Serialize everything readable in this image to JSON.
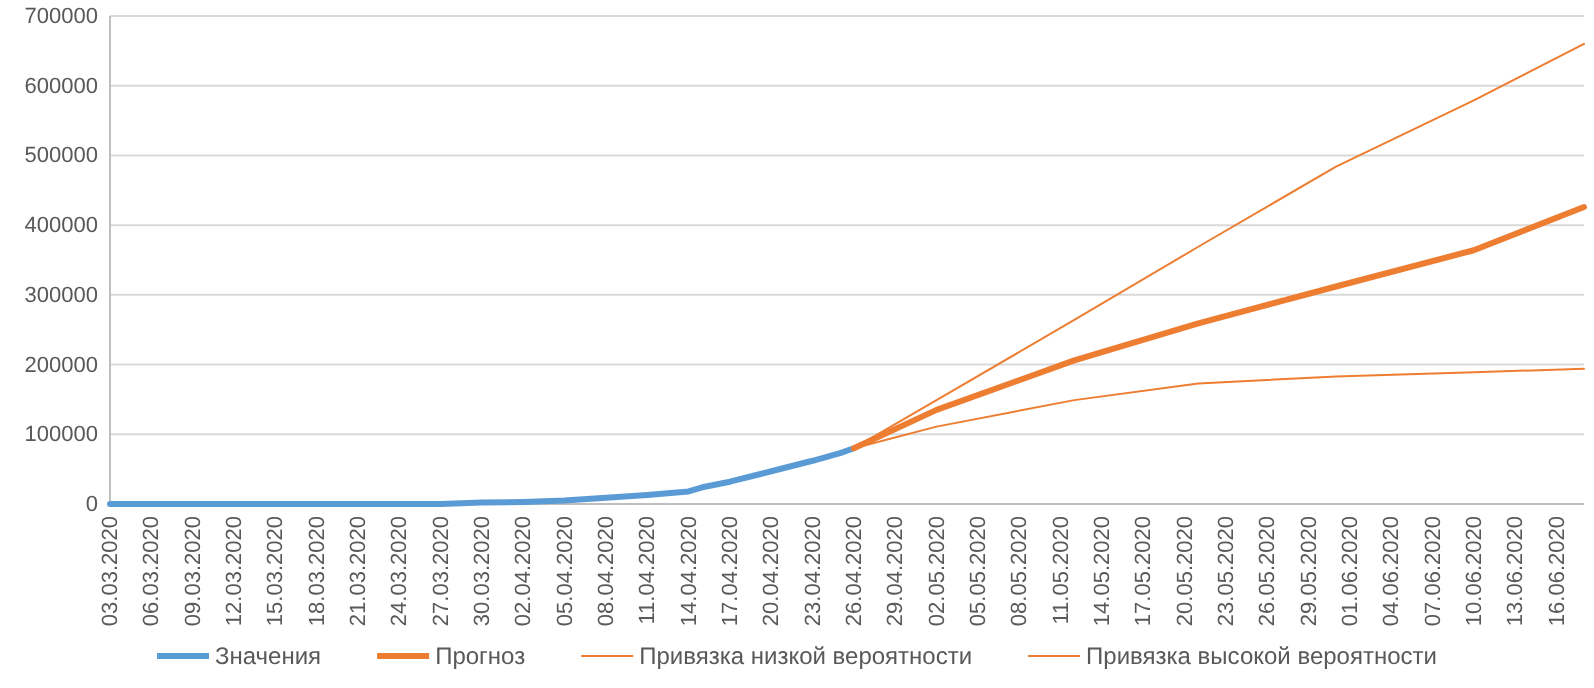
{
  "chart_data": {
    "type": "line",
    "x": [
      "2020-03-03",
      "2020-03-10",
      "2020-03-17",
      "2020-03-24",
      "2020-03-27",
      "2020-03-30",
      "2020-04-02",
      "2020-04-05",
      "2020-04-08",
      "2020-04-11",
      "2020-04-14",
      "2020-04-15",
      "2020-04-17",
      "2020-04-19",
      "2020-04-21",
      "2020-04-23",
      "2020-04-25",
      "2020-04-26"
    ],
    "series": [
      {
        "name": "Значения",
        "color": "#5b9bd5",
        "values": [
          0,
          0,
          0,
          0,
          0,
          2000,
          3000,
          5000,
          9000,
          13000,
          18000,
          24000,
          32000,
          42000,
          52000,
          62000,
          73000,
          80000
        ]
      },
      {
        "name": "Прогноз",
        "color": "#ed7d31",
        "x": [
          "2020-04-26",
          "2020-05-02",
          "2020-05-12",
          "2020-05-21",
          "2020-05-31",
          "2020-06-10",
          "2020-06-18"
        ],
        "values": [
          80000,
          135000,
          206000,
          259000,
          312000,
          364000,
          426000
        ]
      },
      {
        "name": "Привязка низкой вероятности",
        "color": "#ed7d31",
        "x": [
          "2020-04-26",
          "2020-05-02",
          "2020-05-12",
          "2020-05-21",
          "2020-05-31",
          "2020-06-10",
          "2020-06-18"
        ],
        "values": [
          80000,
          111000,
          149000,
          173000,
          183000,
          189000,
          194000
        ]
      },
      {
        "name": "Привязка высокой вероятности",
        "color": "#ed7d31",
        "x": [
          "2020-04-26",
          "2020-05-02",
          "2020-05-12",
          "2020-05-21",
          "2020-05-31",
          "2020-06-10",
          "2020-06-18"
        ],
        "values": [
          80000,
          149000,
          264000,
          369000,
          484000,
          579000,
          660000
        ]
      }
    ],
    "xlim": [
      "2020-03-03",
      "2020-06-18"
    ],
    "xticks": [
      {
        "value": "2020-03-03",
        "label": "03.03.2020"
      },
      {
        "value": "2020-03-06",
        "label": "06.03.2020"
      },
      {
        "value": "2020-03-09",
        "label": "09.03.2020"
      },
      {
        "value": "2020-03-12",
        "label": "12.03.2020"
      },
      {
        "value": "2020-03-15",
        "label": "15.03.2020"
      },
      {
        "value": "2020-03-18",
        "label": "18.03.2020"
      },
      {
        "value": "2020-03-21",
        "label": "21.03.2020"
      },
      {
        "value": "2020-03-24",
        "label": "24.03.2020"
      },
      {
        "value": "2020-03-27",
        "label": "27.03.2020"
      },
      {
        "value": "2020-03-30",
        "label": "30.03.2020"
      },
      {
        "value": "2020-04-02",
        "label": "02.04.2020"
      },
      {
        "value": "2020-04-05",
        "label": "05.04.2020"
      },
      {
        "value": "2020-04-08",
        "label": "08.04.2020"
      },
      {
        "value": "2020-04-11",
        "label": "11.04.2020"
      },
      {
        "value": "2020-04-14",
        "label": "14.04.2020"
      },
      {
        "value": "2020-04-17",
        "label": "17.04.2020"
      },
      {
        "value": "2020-04-20",
        "label": "20.04.2020"
      },
      {
        "value": "2020-04-23",
        "label": "23.04.2020"
      },
      {
        "value": "2020-04-26",
        "label": "26.04.2020"
      },
      {
        "value": "2020-04-29",
        "label": "29.04.2020"
      },
      {
        "value": "2020-05-02",
        "label": "02.05.2020"
      },
      {
        "value": "2020-05-05",
        "label": "05.05.2020"
      },
      {
        "value": "2020-05-08",
        "label": "08.05.2020"
      },
      {
        "value": "2020-05-11",
        "label": "11.05.2020"
      },
      {
        "value": "2020-05-14",
        "label": "14.05.2020"
      },
      {
        "value": "2020-05-17",
        "label": "17.05.2020"
      },
      {
        "value": "2020-05-20",
        "label": "20.05.2020"
      },
      {
        "value": "2020-05-23",
        "label": "23.05.2020"
      },
      {
        "value": "2020-05-26",
        "label": "26.05.2020"
      },
      {
        "value": "2020-05-29",
        "label": "29.05.2020"
      },
      {
        "value": "2020-06-01",
        "label": "01.06.2020"
      },
      {
        "value": "2020-06-04",
        "label": "04.06.2020"
      },
      {
        "value": "2020-06-07",
        "label": "07.06.2020"
      },
      {
        "value": "2020-06-10",
        "label": "10.06.2020"
      },
      {
        "value": "2020-06-13",
        "label": "13.06.2020"
      },
      {
        "value": "2020-06-16",
        "label": "16.06.2020"
      }
    ],
    "ylim": [
      0,
      700000
    ],
    "yticks": [
      0,
      100000,
      200000,
      300000,
      400000,
      500000,
      600000,
      700000
    ],
    "grid": "y",
    "legend": "bottom",
    "marker": "none",
    "line_style": "solid"
  }
}
